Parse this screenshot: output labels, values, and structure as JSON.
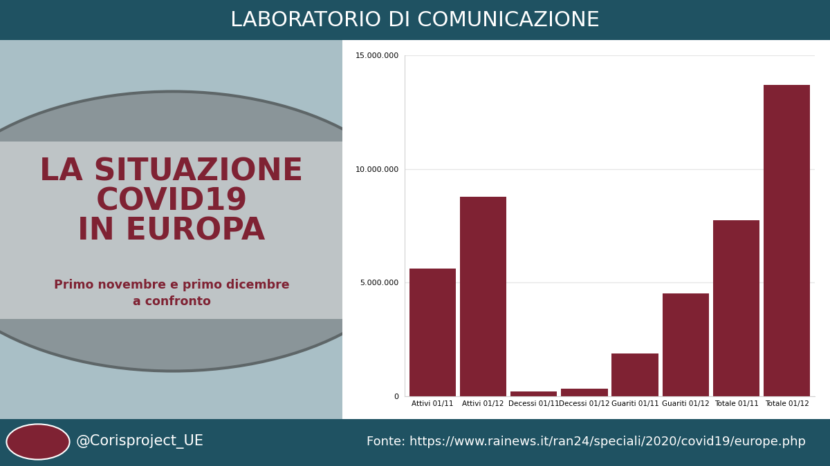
{
  "header": "LABORATORIO DI COMUNICAZIONE",
  "footer": {
    "handle": "@Corisproject_UE",
    "source": "Fonte: https://www.rainews.it/ran24/speciali/2020/covid19/europe.php"
  },
  "chart_data": {
    "type": "bar",
    "title": "LA SITUAZIONE\nCOVID19\nIN EUROPA",
    "subtitle": "Primo novembre e primo dicembre\na confronto",
    "categories": [
      "Attivi 01/11",
      "Attivi 01/12",
      "Decessi 01/11",
      "Decessi 01/12",
      "Guariti 01/11",
      "Guariti 01/12",
      "Totale 01/11",
      "Totale 01/12"
    ],
    "values": [
      5620000,
      8770000,
      210000,
      330000,
      1880000,
      4520000,
      7740000,
      13690000
    ],
    "color": "#7f2233",
    "ylim": [
      0,
      15000000
    ],
    "yticks": [
      0,
      {
        "value": 5000000,
        "label": "5.000.000"
      },
      {
        "value": 10000000,
        "label": "10.000.000"
      },
      {
        "value": 15000000,
        "label": "15.000.000"
      }
    ],
    "grid": true
  }
}
